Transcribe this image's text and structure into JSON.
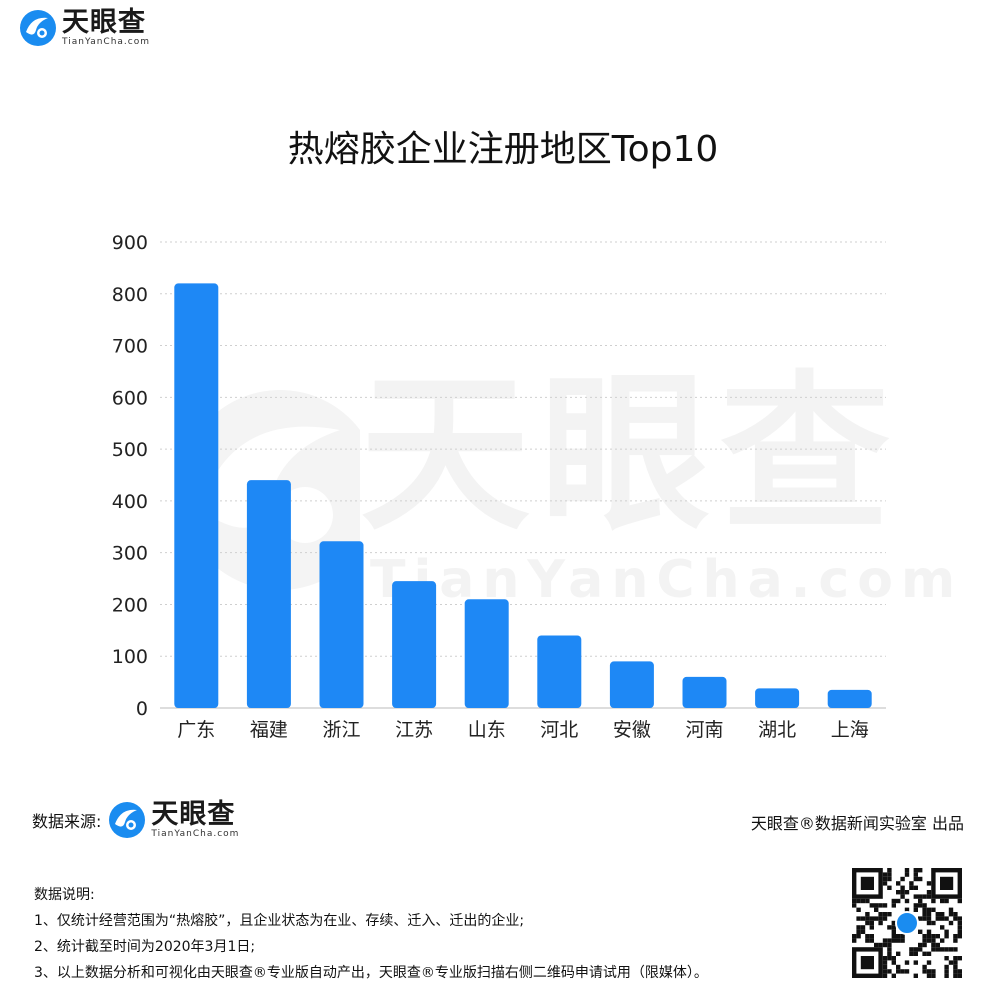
{
  "brand": {
    "name_cn": "天眼查",
    "name_en": "TianYanCha.com"
  },
  "watermark": {
    "cn": "天眼查",
    "en": "TianYanCha.com"
  },
  "chart_data": {
    "type": "bar",
    "title": "热熔胶企业注册地区Top10",
    "categories": [
      "广东",
      "福建",
      "浙江",
      "江苏",
      "山东",
      "河北",
      "安徽",
      "河南",
      "湖北",
      "上海"
    ],
    "values": [
      820,
      440,
      322,
      245,
      210,
      140,
      90,
      60,
      38,
      35
    ],
    "ylim": [
      0,
      900
    ],
    "yticks": [
      0,
      100,
      200,
      300,
      400,
      500,
      600,
      700,
      800,
      900
    ],
    "grid": true,
    "bar_color": "#1e88f5"
  },
  "footer": {
    "source_label": "数据来源:",
    "credit": "天眼查®数据新闻实验室 出品"
  },
  "notes": {
    "title": "数据说明:",
    "items": [
      "1、仅统计经营范围为“热熔胶”，且企业状态为在业、存续、迁入、迁出的企业;",
      "2、统计截至时间为2020年3月1日;",
      "3、以上数据分析和可视化由天眼查®专业版自动产出，天眼查®专业版扫描右侧二维码申请试用（限媒体）。"
    ]
  }
}
